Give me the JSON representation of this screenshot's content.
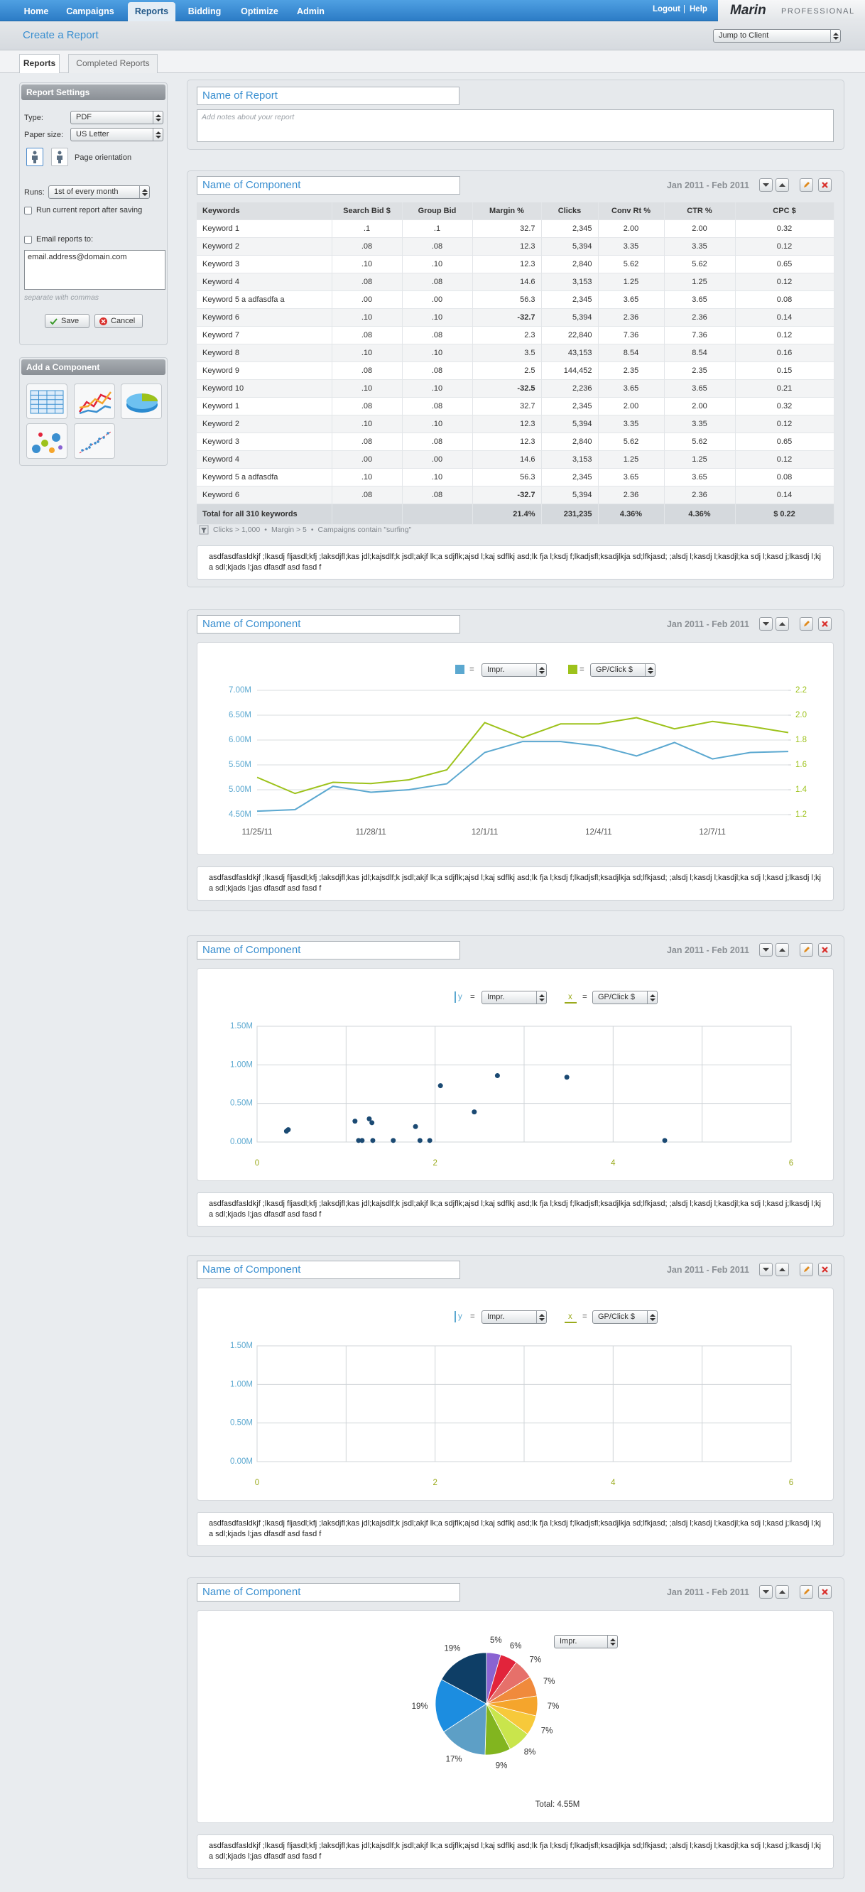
{
  "nav": {
    "items": [
      "Home",
      "Campaigns",
      "Reports",
      "Bidding",
      "Optimize",
      "Admin"
    ],
    "active": 2,
    "links": [
      "Logout",
      "Help"
    ],
    "separator": "|",
    "logo": "Marin",
    "logo_sub": "PROFESSIONAL"
  },
  "header": {
    "title": "Create a Report",
    "jump": "Jump to Client"
  },
  "tabs": {
    "items": [
      "Reports",
      "Completed Reports"
    ],
    "active": 0
  },
  "settings": {
    "title": "Report Settings",
    "type_label": "Type:",
    "type": "PDF",
    "paper_label": "Paper size:",
    "paper": "US Letter",
    "orientation": "Page orientation",
    "runs_label": "Runs:",
    "runs": "1st of every month",
    "run_now": "Run current report after saving",
    "email_label": "Email reports to:",
    "email": "email.address@domain.com",
    "email_hint": "separate with commas",
    "save": "Save",
    "cancel": "Cancel"
  },
  "add_component": {
    "title": "Add a Component"
  },
  "report": {
    "name": "Name of Report",
    "notes_placeholder": "Add notes about your report"
  },
  "components": [
    {
      "name": "Name of Component",
      "dates": "Jan 2011 - Feb 2011",
      "notes": "asdfasdfasldkjf ;lkasdj fljasdl;kfj ;laksdjfl;kas jdl;kajsdlf;k jsdl;akjf lk;a sdjflk;ajsd l;kaj sdflkj asd;lk fja l;ksdj f;lkadjsfl;ksadjlkja sd;lfkjasd; ;alsdj l;kasdj l;kasdjl;ka sdj l;kasd j;lkasdj l;kj a sdl;kjads l;jas dfasdf asd fasd f"
    },
    {
      "name": "Name of Component",
      "dates": "Jan 2011 - Feb 2011",
      "notes": "asdfasdfasldkjf ;lkasdj fljasdl;kfj ;laksdjfl;kas jdl;kajsdlf;k jsdl;akjf lk;a sdjflk;ajsd l;kaj sdflkj asd;lk fja l;ksdj f;lkadjsfl;ksadjlkja sd;lfkjasd; ;alsdj l;kasdj l;kasdjl;ka sdj l;kasd j;lkasdj l;kj a sdl;kjads l;jas dfasdf asd fasd f"
    },
    {
      "name": "Name of Component",
      "dates": "Jan 2011 - Feb 2011",
      "notes": "asdfasdfasldkjf ;lkasdj fljasdl;kfj ;laksdjfl;kas jdl;kajsdlf;k jsdl;akjf lk;a sdjflk;ajsd l;kaj sdflkj asd;lk fja l;ksdj f;lkadjsfl;ksadjlkja sd;lfkjasd; ;alsdj l;kasdj l;kasdjl;ka sdj l;kasd j;lkasdj l;kj a sdl;kjads l;jas dfasdf asd fasd f"
    },
    {
      "name": "Name of Component",
      "dates": "Jan 2011 - Feb 2011",
      "notes": "asdfasdfasldkjf ;lkasdj fljasdl;kfj ;laksdjfl;kas jdl;kajsdlf;k jsdl;akjf lk;a sdjflk;ajsd l;kaj sdflkj asd;lk fja l;ksdj f;lkadjsfl;ksadjlkja sd;lfkjasd; ;alsdj l;kasdj l;kasdjl;ka sdj l;kasd j;lkasdj l;kj a sdl;kjads l;jas dfasdf asd fasd f"
    },
    {
      "name": "Name of Component",
      "dates": "Jan 2011 - Feb 2011",
      "notes": "asdfasdfasldkjf ;lkasdj fljasdl;kfj ;laksdjfl;kas jdl;kajsdlf;k jsdl;akjf lk;a sdjflk;ajsd l;kaj sdflkj asd;lk fja l;ksdj f;lkadjsfl;ksadjlkja sd;lfkjasd; ;alsdj l;kasdj l;kasdjl;ka sdj l;kasd j;lkasdj l;kj a sdl;kjads l;jas dfasdf asd fasd f"
    }
  ],
  "table": {
    "columns": [
      "Keywords",
      "Search Bid  $",
      "Group Bid",
      "Margin  %",
      "Clicks",
      "Conv Rt %",
      "CTR  %",
      "CPC  $"
    ],
    "rows": [
      [
        "Keyword 1",
        ".1",
        ".1",
        "32.7",
        "2,345",
        "2.00",
        "2.00",
        "0.32"
      ],
      [
        "Keyword 2",
        ".08",
        ".08",
        "12.3",
        "5,394",
        "3.35",
        "3.35",
        "0.12"
      ],
      [
        "Keyword 3",
        ".10",
        ".10",
        "12.3",
        "2,840",
        "5.62",
        "5.62",
        "0.65"
      ],
      [
        "Keyword 4",
        ".08",
        ".08",
        "14.6",
        "3,153",
        "1.25",
        "1.25",
        "0.12"
      ],
      [
        "Keyword 5 a adfasdfa a",
        ".00",
        ".00",
        "56.3",
        "2,345",
        "3.65",
        "3.65",
        "0.08"
      ],
      [
        "Keyword 6",
        ".10",
        ".10",
        "-32.7",
        "5,394",
        "2.36",
        "2.36",
        "0.14"
      ],
      [
        "Keyword 7",
        ".08",
        ".08",
        "2.3",
        "22,840",
        "7.36",
        "7.36",
        "0.12"
      ],
      [
        "Keyword 8",
        ".10",
        ".10",
        "3.5",
        "43,153",
        "8.54",
        "8.54",
        "0.16"
      ],
      [
        "Keyword 9",
        ".08",
        ".08",
        "2.5",
        "144,452",
        "2.35",
        "2.35",
        "0.15"
      ],
      [
        "Keyword 10",
        ".10",
        ".10",
        "-32.5",
        "2,236",
        "3.65",
        "3.65",
        "0.21"
      ],
      [
        "Keyword 1",
        ".08",
        ".08",
        "32.7",
        "2,345",
        "2.00",
        "2.00",
        "0.32"
      ],
      [
        "Keyword 2",
        ".10",
        ".10",
        "12.3",
        "5,394",
        "3.35",
        "3.35",
        "0.12"
      ],
      [
        "Keyword 3",
        ".08",
        ".08",
        "12.3",
        "2,840",
        "5.62",
        "5.62",
        "0.65"
      ],
      [
        "Keyword 4",
        ".00",
        ".00",
        "14.6",
        "3,153",
        "1.25",
        "1.25",
        "0.12"
      ],
      [
        "Keyword 5 a adfasdfa",
        ".10",
        ".10",
        "56.3",
        "2,345",
        "3.65",
        "3.65",
        "0.08"
      ],
      [
        "Keyword 6",
        ".08",
        ".08",
        "-32.7",
        "5,394",
        "2.36",
        "2.36",
        "0.14"
      ]
    ],
    "total": [
      "Total for all 310 keywords",
      null,
      null,
      "21.4%",
      "231,235",
      "4.36%",
      "4.36%",
      "$ 0.22"
    ],
    "filters": [
      "Clicks > 1,000",
      "Margin > 5",
      "Campaigns contain \"surfing\""
    ],
    "filter_sep": "•"
  },
  "chart_data": [
    {
      "type": "line",
      "legend_sep": "=",
      "categories": [
        "11/25/11",
        null,
        null,
        "11/28/11",
        null,
        null,
        "12/1/11",
        null,
        null,
        "12/4/11",
        null,
        null,
        "12/7/11",
        null,
        null
      ],
      "series": [
        {
          "name": "Impr.",
          "color": "#5ba8d0",
          "values": [
            4570000,
            4600000,
            5070000,
            4950000,
            5000000,
            5120000,
            5750000,
            5970000,
            5970000,
            5880000,
            5680000,
            5950000,
            5620000,
            5750000,
            5770000
          ]
        },
        {
          "name": "GP/Click $",
          "color": "#9dc21b",
          "axis": "y2",
          "values": [
            1.5,
            1.37,
            1.46,
            1.45,
            1.48,
            1.56,
            1.94,
            1.82,
            1.93,
            1.93,
            1.98,
            1.89,
            1.95,
            1.91,
            1.86
          ]
        }
      ],
      "ylim": [
        4500000,
        7000000
      ],
      "yticks": [
        {
          "value": 4500000,
          "label": "4.50M"
        },
        {
          "value": 5000000,
          "label": "5.00M"
        },
        {
          "value": 5500000,
          "label": "5.50M"
        },
        {
          "value": 6000000,
          "label": "6.00M"
        },
        {
          "value": 6500000,
          "label": "6.50M"
        },
        {
          "value": 7000000,
          "label": "7.00M"
        }
      ],
      "y2lim": [
        1.2,
        2.2
      ],
      "y2ticks": [
        1.2,
        1.4,
        1.6,
        1.8,
        {
          "value": 2,
          "label": "2.0"
        },
        2.2
      ],
      "grid": true
    },
    {
      "type": "scatter",
      "legend_sep": "=",
      "y_symbol": "y",
      "x_symbol": "x",
      "ylabel": "Impr.",
      "xlabel": "GP/Click $",
      "ycolor": "#5ba8d0",
      "xcolor": "#9aaa1c",
      "series": [
        {
          "color": "#1b4a73",
          "x": [
            0.33,
            0.35,
            1.1,
            1.14,
            1.18,
            1.26,
            1.29,
            1.3,
            1.53,
            1.78,
            1.83,
            1.94,
            2.06,
            2.44,
            2.7,
            3.48,
            4.58
          ],
          "values": [
            140000,
            160000,
            270000,
            20000,
            20000,
            300000,
            250000,
            20000,
            20000,
            200000,
            20000,
            20000,
            730000,
            390000,
            860000,
            840000,
            20000
          ]
        }
      ],
      "xlim": [
        0,
        6
      ],
      "xticks": [
        0,
        2,
        4,
        6
      ],
      "xgrid_subdivisions": 2,
      "ylim": [
        0,
        1500000
      ],
      "yticks": [
        {
          "value": 0,
          "label": "0.00M"
        },
        {
          "value": 500000,
          "label": "0.50M"
        },
        {
          "value": 1000000,
          "label": "1.00M"
        },
        {
          "value": 1500000,
          "label": "1.50M"
        }
      ],
      "grid": true
    },
    {
      "type": "scatter",
      "legend_sep": "=",
      "y_symbol": "y",
      "x_symbol": "x",
      "ylabel": "Impr.",
      "xlabel": "GP/Click $",
      "ycolor": "#5ba8d0",
      "xcolor": "#9aaa1c",
      "series": [],
      "xlim": [
        0,
        6
      ],
      "xticks": [
        0,
        2,
        4,
        6
      ],
      "xgrid_subdivisions": 2,
      "ylim": [
        0,
        1500000
      ],
      "yticks": [
        {
          "value": 0,
          "label": "0.00M"
        },
        {
          "value": 500000,
          "label": "0.50M"
        },
        {
          "value": 1000000,
          "label": "1.00M"
        },
        {
          "value": 1500000,
          "label": "1.50M"
        }
      ],
      "grid": true
    },
    {
      "type": "pie",
      "select": "Impr.",
      "total_label": "Total: 4.55M",
      "values": [
        5,
        6,
        7,
        7,
        7,
        7,
        8,
        9,
        17,
        19,
        19
      ],
      "value_labels": [
        "5%",
        "6%",
        "7%",
        "7%",
        "7%",
        "7%",
        "8%",
        "9%",
        "17%",
        "19%",
        "19%"
      ],
      "colors": [
        "#8a63d2",
        "#e2243b",
        "#e6706a",
        "#f08a3c",
        "#f5a52c",
        "#f7c93a",
        "#c9e54c",
        "#82b51f",
        "#5d9fc6",
        "#1c8de0",
        "#0e3e66"
      ]
    }
  ]
}
